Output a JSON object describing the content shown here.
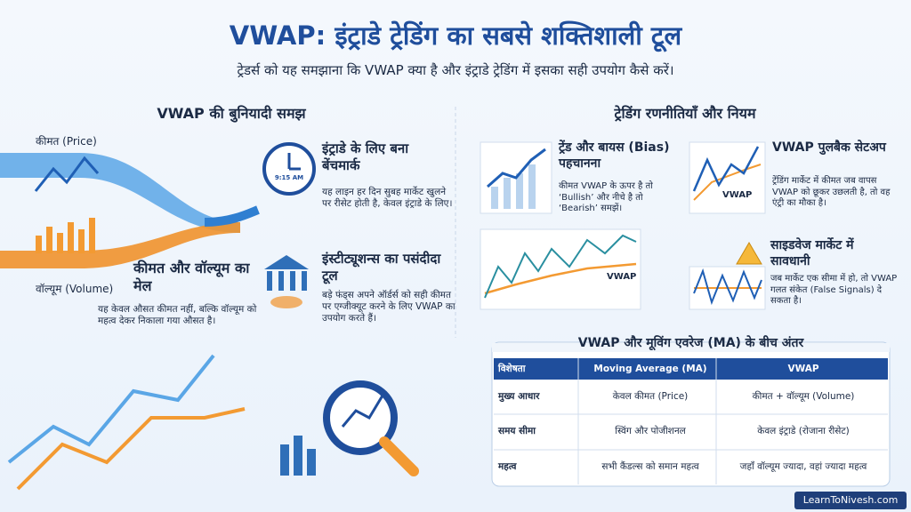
{
  "header": {
    "title": "VWAP: इंट्राडे ट्रेडिंग का सबसे शक्तिशाली टूल",
    "subtitle": "ट्रेडर्स को यह समझाना कि VWAP क्या है और इंट्राडे ट्रेडिंग में इसका सही उपयोग कैसे करें।"
  },
  "left": {
    "heading": "VWAP की बुनियादी समझ",
    "price_label": "कीमत (Price)",
    "volume_label": "वॉल्यूम (Volume)",
    "merge": {
      "title": "कीमत और वॉल्यूम का मेल",
      "text": "यह केवल औसत कीमत नहीं, बल्कि वॉल्यूम को महत्व देकर निकाला गया औसत है।"
    },
    "benchmark": {
      "title": "इंट्राडे के लिए बना बेंचमार्क",
      "clock": "9:15 AM",
      "text": "यह लाइन हर दिन सुबह मार्केट खुलने पर रीसेट होती है, केवल इंट्राडे के लिए।"
    },
    "institutions": {
      "title": "इंस्टीट्यूशन्स का पसंदीदा टूल",
      "text": "बड़े फंड्स अपने ऑर्डर्स को सही कीमत पर एग्जीक्यूट करने के लिए VWAP का उपयोग करते हैं।"
    }
  },
  "right": {
    "heading": "ट्रेडिंग रणनीतियाँ और नियम",
    "trend": {
      "title": "ट्रेंड और बायस (Bias) पहचानना",
      "text": "कीमत VWAP के ऊपर है तो ‘Bullish’ और नीचे है तो ‘Bearish’ समझें।"
    },
    "pullback": {
      "title": "VWAP पुलबैक सेटअप",
      "chart_label": "VWAP",
      "text": "ट्रेंडिंग मार्केट में कीमत जब वापस VWAP को छूकर उछलती है, तो वह एंट्री का मौका है।"
    },
    "big_chart_label": "VWAP",
    "sideways": {
      "title": "साइडवेज मार्केट में सावधानी",
      "text": "जब मार्केट एक सीमा में हो, तो VWAP गलत संकेत (False Signals) दे सकता है।"
    }
  },
  "table": {
    "title": "VWAP और मूविंग एवरेज (MA) के बीच अंतर",
    "headers": [
      "विशेषता",
      "Moving Average (MA)",
      "VWAP"
    ],
    "rows": [
      [
        "मुख्य आधार",
        "केवल कीमत (Price)",
        "कीमत + वॉल्यूम (Volume)"
      ],
      [
        "समय सीमा",
        "स्विंग और पोजीशनल",
        "केवल इंट्राडे (रोजाना रीसेट)"
      ],
      [
        "महत्व",
        "सभी कैंडल्स को समान महत्व",
        "जहाँ वॉल्यूम ज्यादा, वहां ज्यादा महत्व"
      ]
    ]
  },
  "footer": "LearnToNivesh.com"
}
